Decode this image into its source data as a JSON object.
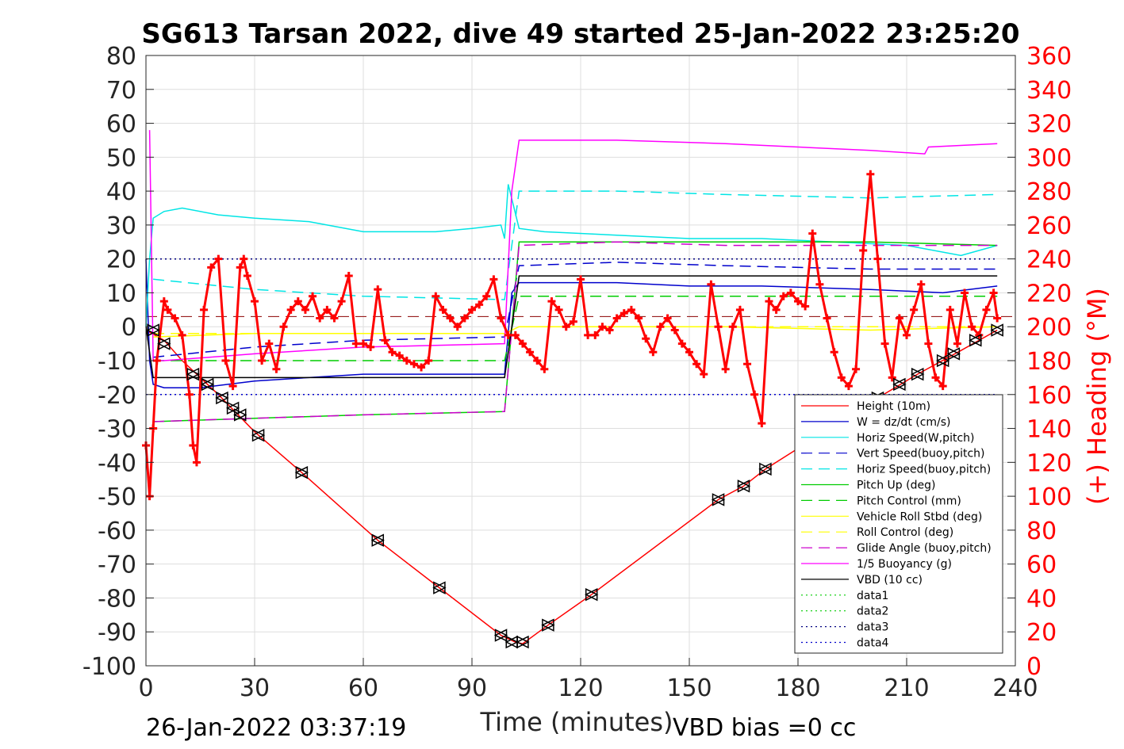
{
  "footer": {
    "timestamp": "26-Jan-2022 03:37:19",
    "vbd_bias": "VBD bias =0 cc"
  },
  "chart_data": {
    "type": "line",
    "title": "SG613 Tarsan 2022, dive 49 started 25-Jan-2022 23:25:20",
    "xlabel": "Time (minutes)",
    "ylabel": "",
    "y2label": "(+) Heading (°M)",
    "xlim": [
      0,
      240
    ],
    "ylim": [
      -100,
      80
    ],
    "y2lim": [
      0,
      360
    ],
    "x_ticks": [
      0,
      30,
      60,
      90,
      120,
      150,
      180,
      210,
      240
    ],
    "y_ticks": [
      -100,
      -90,
      -80,
      -70,
      -60,
      -50,
      -40,
      -30,
      -20,
      -10,
      0,
      10,
      20,
      30,
      40,
      50,
      60,
      70,
      80
    ],
    "y2_ticks": [
      0,
      20,
      40,
      60,
      80,
      100,
      120,
      140,
      160,
      180,
      200,
      220,
      240,
      260,
      280,
      300,
      320,
      340,
      360
    ],
    "grid": true,
    "legend_position": "bottom-right",
    "colors": {
      "heading": "#ff0000",
      "axis_right": "#ff0000"
    },
    "series": [
      {
        "name": "Height (10m)",
        "color": "#ff0000",
        "dash": "solid",
        "x": [
          0,
          5,
          10,
          20,
          30,
          43,
          64,
          81,
          98,
          102,
          104,
          111,
          123,
          158,
          165,
          171,
          202,
          213,
          225,
          235
        ],
        "y": [
          -1,
          -4,
          -10,
          -20,
          -31,
          -43,
          -63,
          -77,
          -91,
          -93,
          -93.5,
          -88,
          -79,
          -51,
          -47,
          -42,
          -21,
          -14,
          -7,
          -1
        ]
      },
      {
        "name": "W = dz/dt (cm/s)",
        "color": "#0000cc",
        "dash": "solid",
        "x": [
          0,
          1,
          2,
          5,
          15,
          30,
          60,
          90,
          99,
          101,
          103,
          110,
          130,
          150,
          170,
          200,
          220,
          235
        ],
        "y": [
          20,
          -10,
          -17,
          -18,
          -18,
          -16,
          -14,
          -14,
          -14,
          10,
          13,
          13,
          13,
          12,
          12,
          11,
          10,
          12
        ]
      },
      {
        "name": "Horiz Speed(W,pitch)",
        "color": "#00e5e5",
        "dash": "solid",
        "x": [
          0,
          1,
          2,
          5,
          10,
          20,
          30,
          45,
          60,
          80,
          90,
          98,
          99,
          100,
          103,
          110,
          130,
          150,
          170,
          190,
          210,
          225,
          235
        ],
        "y": [
          0,
          20,
          32,
          34,
          35,
          33,
          32,
          31,
          28,
          28,
          29,
          30,
          26,
          42,
          29,
          28,
          27,
          26,
          26,
          25,
          24,
          21,
          24
        ]
      },
      {
        "name": "Vert Speed(buoy,pitch)",
        "color": "#0000cc",
        "dash": "dashed",
        "x": [
          2,
          30,
          60,
          99,
          103,
          130,
          160,
          200,
          235
        ],
        "y": [
          -9,
          -6,
          -4,
          -3,
          18,
          19,
          18,
          17,
          17
        ]
      },
      {
        "name": "Horiz Speed(buoy,pitch)",
        "color": "#00e5e5",
        "dash": "dashed",
        "x": [
          2,
          30,
          60,
          99,
          103,
          130,
          160,
          200,
          235
        ],
        "y": [
          14,
          11,
          9,
          8,
          40,
          40,
          39,
          38,
          39
        ]
      },
      {
        "name": "Pitch Up (deg)",
        "color": "#00cc00",
        "dash": "solid",
        "x": [
          2,
          30,
          60,
          99,
          103,
          130,
          160,
          200,
          235
        ],
        "y": [
          -28,
          -27,
          -26,
          -25,
          25,
          25,
          25,
          25,
          24
        ]
      },
      {
        "name": "Pitch Control (mm)",
        "color": "#00cc00",
        "dash": "dashed",
        "x": [
          2,
          99,
          103,
          235
        ],
        "y": [
          -10,
          -10,
          9,
          9
        ]
      },
      {
        "name": "Vehicle Roll Stbd (deg)",
        "color": "#ffff00",
        "dash": "solid",
        "x": [
          2,
          30,
          60,
          90,
          99,
          103,
          130,
          160,
          200,
          235
        ],
        "y": [
          -3,
          -2,
          -2,
          -2,
          -2,
          0,
          0,
          0,
          -1,
          0
        ]
      },
      {
        "name": "Roll Control (deg)",
        "color": "#ffff00",
        "dash": "dashed",
        "x": [
          2,
          99,
          103,
          235
        ],
        "y": [
          -2,
          -2,
          0,
          0
        ]
      },
      {
        "name": "Glide Angle (buoy,pitch)",
        "color": "#cc00cc",
        "dash": "dashed",
        "x": [
          2,
          30,
          60,
          99,
          103,
          130,
          160,
          200,
          235
        ],
        "y": [
          -28,
          -27,
          -26,
          -25,
          24,
          25,
          24,
          24,
          24
        ]
      },
      {
        "name": "1/5 Buoyancy (g)",
        "color": "#ff00ff",
        "dash": "solid",
        "x": [
          1,
          2,
          5,
          30,
          60,
          99,
          101,
          103,
          130,
          160,
          200,
          215,
          216,
          235
        ],
        "y": [
          58,
          -10,
          -10,
          -8,
          -6,
          -5,
          40,
          55,
          55,
          54,
          52,
          51,
          53,
          54
        ]
      },
      {
        "name": "VBD (10 cc)",
        "color": "#000000",
        "dash": "solid",
        "x": [
          0,
          2,
          30,
          60,
          99,
          103,
          130,
          160,
          200,
          235
        ],
        "y": [
          0,
          -15,
          -15,
          -15,
          -15,
          15,
          15,
          15,
          15,
          15
        ]
      },
      {
        "name": "data1",
        "color": "#00cc00",
        "dash": "dotted",
        "x": [
          0,
          235
        ],
        "y": [
          null,
          null
        ]
      },
      {
        "name": "data2",
        "color": "#00cc00",
        "dash": "dotted",
        "x": [
          0,
          235
        ],
        "y": [
          null,
          null
        ]
      },
      {
        "name": "data3",
        "color": "#000080",
        "dash": "dotted",
        "x": [
          0,
          235
        ],
        "y": [
          20,
          20
        ]
      },
      {
        "name": "data4",
        "color": "#0000cc",
        "dash": "dotted",
        "x": [
          0,
          235
        ],
        "y": [
          -20,
          -20
        ]
      }
    ],
    "heading": {
      "name": "Heading",
      "color": "#ff0000",
      "marker": "+",
      "x": [
        0,
        1,
        2,
        3,
        5,
        6,
        8,
        10,
        12,
        13,
        14,
        16,
        18,
        20,
        22,
        24,
        26,
        27,
        28,
        30,
        32,
        34,
        36,
        38,
        40,
        42,
        44,
        46,
        48,
        50,
        52,
        54,
        56,
        58,
        60,
        62,
        64,
        66,
        68,
        70,
        72,
        74,
        76,
        78,
        80,
        82,
        84,
        86,
        88,
        90,
        92,
        94,
        96,
        98,
        100,
        102,
        104,
        106,
        108,
        110,
        112,
        114,
        116,
        118,
        120,
        122,
        124,
        126,
        128,
        130,
        132,
        134,
        136,
        138,
        140,
        142,
        144,
        146,
        148,
        150,
        152,
        154,
        156,
        158,
        160,
        162,
        164,
        166,
        168,
        170,
        172,
        174,
        176,
        178,
        180,
        182,
        184,
        186,
        188,
        190,
        192,
        194,
        196,
        198,
        200,
        202,
        204,
        206,
        208,
        210,
        212,
        214,
        216,
        218,
        220,
        222,
        224,
        226,
        228,
        230,
        232,
        234,
        235
      ],
      "y": [
        130,
        100,
        140,
        180,
        215,
        210,
        205,
        195,
        160,
        130,
        120,
        210,
        235,
        240,
        180,
        165,
        235,
        240,
        230,
        215,
        180,
        190,
        175,
        200,
        210,
        215,
        210,
        218,
        205,
        210,
        205,
        215,
        230,
        190,
        190,
        188,
        222,
        192,
        185,
        183,
        180,
        178,
        176,
        180,
        218,
        210,
        205,
        200,
        205,
        210,
        213,
        218,
        228,
        205,
        195,
        195,
        190,
        185,
        180,
        175,
        215,
        210,
        200,
        203,
        228,
        195,
        195,
        200,
        198,
        205,
        208,
        210,
        205,
        193,
        185,
        200,
        205,
        198,
        190,
        185,
        178,
        172,
        225,
        200,
        175,
        200,
        210,
        178,
        160,
        143,
        215,
        210,
        218,
        220,
        215,
        212,
        255,
        225,
        205,
        185,
        170,
        165,
        175,
        245,
        290,
        240,
        190,
        170,
        205,
        195,
        210,
        225,
        190,
        170,
        165,
        210,
        190,
        220,
        200,
        195,
        210,
        220,
        205
      ]
    },
    "dive_markers": {
      "x": [
        2,
        5,
        13,
        17,
        21,
        24,
        26,
        31,
        43,
        64,
        81,
        98,
        101,
        104,
        111,
        123,
        158,
        165,
        171,
        202,
        208,
        213,
        220,
        223,
        229,
        235
      ],
      "y": [
        -1,
        -5,
        -14,
        -17,
        -21,
        -24,
        -26,
        -32,
        -43,
        -63,
        -77,
        -91,
        -93,
        -93,
        -88,
        -79,
        -51,
        -47,
        -42,
        -21,
        -17,
        -14,
        -10,
        -8,
        -4,
        -1
      ]
    },
    "reference_line": {
      "y": 3,
      "color": "#8b0000",
      "dash": "dashed"
    }
  }
}
